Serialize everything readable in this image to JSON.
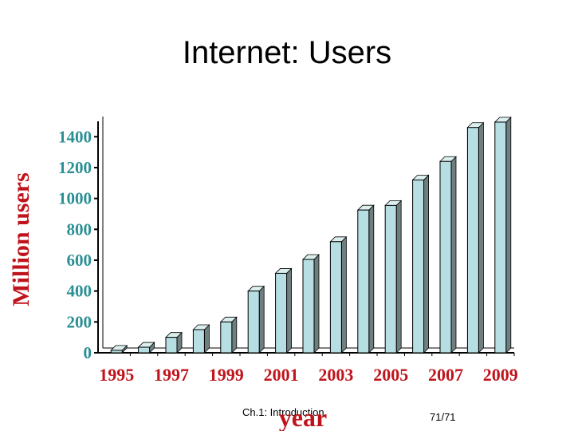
{
  "slide": {
    "title": "Internet: Users",
    "footer_center": "Ch.1: Introduction",
    "footer_page": "71/71"
  },
  "colors": {
    "bar_front": "#b7dee2",
    "bar_side": "#6f7f80",
    "bar_top": "#dcefef",
    "axis": "#000000",
    "ylabel": "#c0141c",
    "ytick": "#2a8f94",
    "xtick": "#c0141c"
  },
  "chart_data": {
    "type": "bar",
    "title": "",
    "xlabel": "year",
    "ylabel": "Million users",
    "ylim": [
      0,
      1500
    ],
    "yticks": [
      0,
      200,
      400,
      600,
      800,
      1000,
      1200,
      1400
    ],
    "categories": [
      "1995",
      "1996",
      "1997",
      "1998",
      "1999",
      "2000",
      "2001",
      "2002",
      "2003",
      "2004",
      "2005",
      "2006",
      "2007",
      "2008",
      "2009"
    ],
    "xtick_labels": [
      "1995",
      "1997",
      "1999",
      "2001",
      "2003",
      "2005",
      "2007",
      "2009"
    ],
    "values": [
      16,
      36,
      100,
      150,
      200,
      400,
      515,
      605,
      720,
      925,
      955,
      1120,
      1240,
      1460,
      1495
    ],
    "grid": false,
    "legend": "none"
  }
}
